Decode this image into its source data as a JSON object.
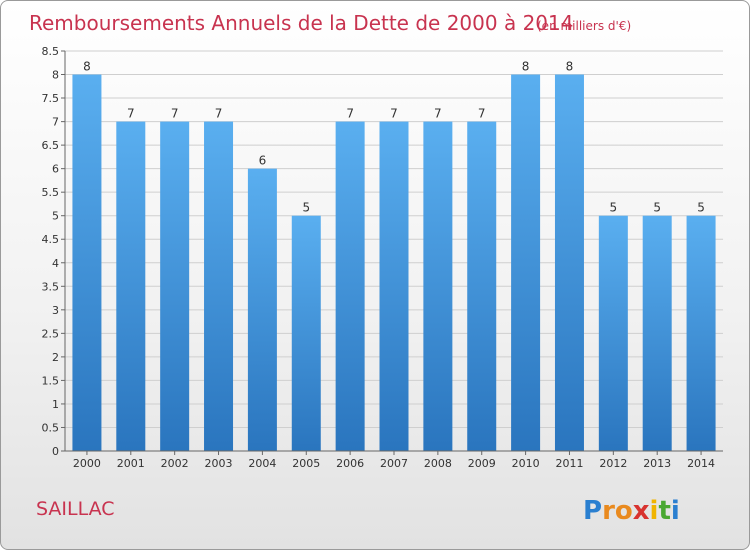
{
  "chart_data": {
    "type": "bar",
    "title": "Remboursements Annuels de la Dette de 2000 à 2014",
    "subtitle": "(en milliers d'€)",
    "categories": [
      "2000",
      "2001",
      "2002",
      "2003",
      "2004",
      "2005",
      "2006",
      "2007",
      "2008",
      "2009",
      "2010",
      "2011",
      "2012",
      "2013",
      "2014"
    ],
    "values": [
      8,
      7,
      7,
      7,
      6,
      5,
      7,
      7,
      7,
      7,
      8,
      8,
      5,
      5,
      5
    ],
    "ylim": [
      0,
      8.5
    ],
    "yticks": [
      "0",
      "0.5",
      "1",
      "1.5",
      "2",
      "2.5",
      "3",
      "3.5",
      "4",
      "4.5",
      "5",
      "5.5",
      "6",
      "6.5",
      "7",
      "7.5",
      "8",
      "8.5"
    ],
    "grid": true,
    "bar_color": "#3a8fd8"
  },
  "commune": "SAILLAC",
  "logo": {
    "letters": [
      "P",
      "r",
      "o",
      "x",
      "i",
      "t",
      "i"
    ],
    "colors": [
      "#2a7fd0",
      "#e98a1f",
      "#e98a1f",
      "#d8332f",
      "#f0b400",
      "#4aa832",
      "#2a7fd0"
    ]
  }
}
